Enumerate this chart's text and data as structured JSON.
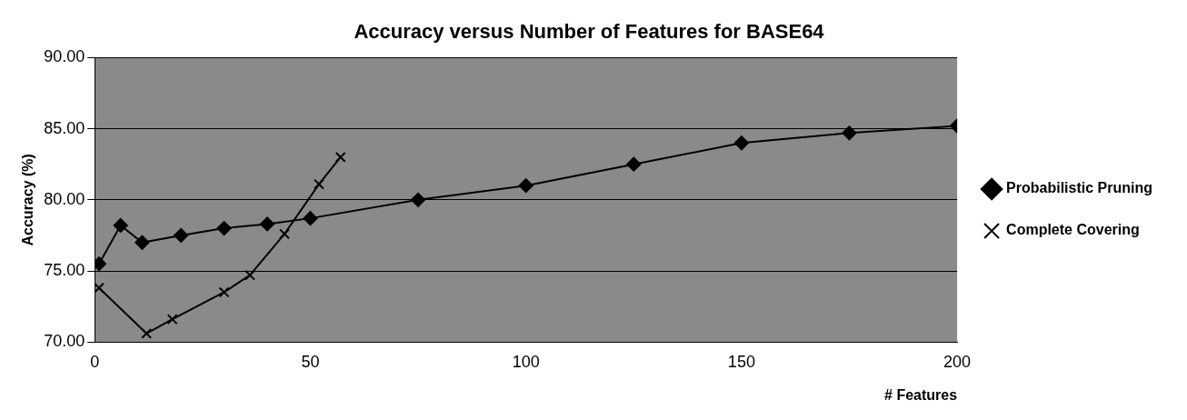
{
  "chart_data": {
    "type": "line",
    "title": "Accuracy versus Number of Features for BASE64",
    "xlabel": "# Features",
    "ylabel": "Accuracy (%)",
    "series": [
      {
        "name": "Probabilistic Pruning",
        "color": "#000000",
        "marker": "diamond",
        "x": [
          1,
          6,
          11,
          20,
          30,
          40,
          50,
          75,
          100,
          125,
          150,
          175,
          200
        ],
        "values": [
          75.5,
          78.2,
          77,
          77.5,
          78,
          78.3,
          78.7,
          80,
          81,
          82.5,
          84,
          84.7,
          85.2
        ]
      },
      {
        "name": "Complete Covering",
        "color": "#000000",
        "marker": "cross",
        "x": [
          1,
          12,
          18,
          30,
          36,
          44,
          52,
          57
        ],
        "values": [
          73.8,
          70.6,
          71.6,
          73.5,
          74.7,
          77.6,
          81.1,
          83
        ]
      }
    ],
    "xlim": [
      0,
      200
    ],
    "xticks": [
      0,
      50,
      100,
      150,
      200
    ],
    "ylim": [
      70,
      90
    ],
    "yticks": [
      {
        "value": 70,
        "label": "70.00"
      },
      {
        "value": 75,
        "label": "75.00"
      },
      {
        "value": 80,
        "label": "80.00"
      },
      {
        "value": 85,
        "label": "85.00"
      },
      {
        "value": 90,
        "label": "90.00"
      }
    ],
    "grid": "y",
    "legend": "right",
    "line_style": "solid"
  }
}
